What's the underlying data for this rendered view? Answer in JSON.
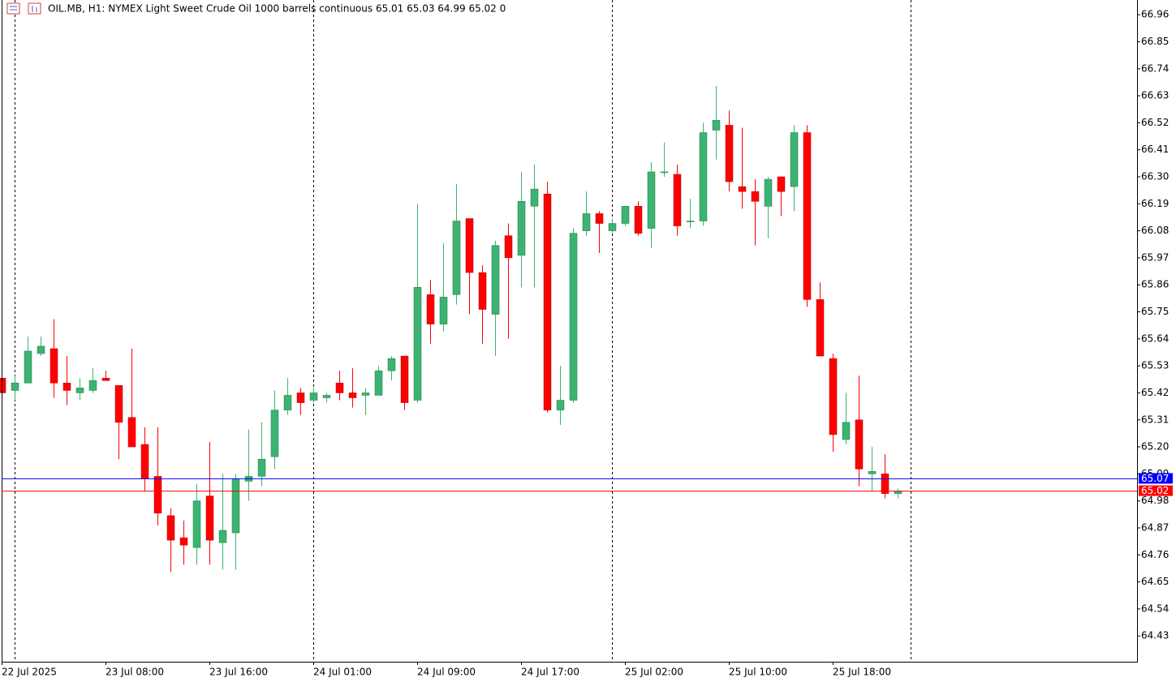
{
  "chart_data": {
    "type": "candlestick",
    "title": "OIL.MB, H1:  NYMEX Light Sweet Crude Oil 1000 barrels continuous  65.01 65.03 64.99 65.02  0",
    "x": [
      "22 Jul 2025",
      null,
      null,
      null,
      null,
      null,
      null,
      null,
      "23 Jul 08:00",
      null,
      null,
      null,
      null,
      null,
      null,
      null,
      "23 Jul 16:00",
      null,
      null,
      null,
      null,
      null,
      null,
      null,
      "24 Jul 01:00",
      null,
      null,
      null,
      null,
      null,
      null,
      null,
      "24 Jul 09:00",
      null,
      null,
      null,
      null,
      null,
      null,
      null,
      "24 Jul 17:00",
      null,
      null,
      null,
      null,
      null,
      null,
      null,
      "25 Jul 02:00",
      null,
      null,
      null,
      null,
      null,
      null,
      null,
      "25 Jul 10:00",
      null,
      null,
      null,
      null,
      null,
      null,
      null,
      "25 Jul 18:00",
      null,
      null,
      null,
      null,
      null
    ],
    "open": [
      65.48,
      65.43,
      65.46,
      65.58,
      65.6,
      65.46,
      65.42,
      65.43,
      65.48,
      65.45,
      65.32,
      65.21,
      65.08,
      64.92,
      64.83,
      64.79,
      65.0,
      64.81,
      64.85,
      65.06,
      65.08,
      65.16,
      65.35,
      65.42,
      65.39,
      65.4,
      65.46,
      65.42,
      65.41,
      65.41,
      65.51,
      65.57,
      65.39,
      65.82,
      65.7,
      65.82,
      66.13,
      65.91,
      65.74,
      66.06,
      65.98,
      66.18,
      66.23,
      65.35,
      65.39,
      66.08,
      66.15,
      66.08,
      66.11,
      66.18,
      66.09,
      66.32,
      66.31,
      66.12,
      66.12,
      66.49,
      66.51,
      66.26,
      66.24,
      66.18,
      66.3,
      66.26,
      66.48,
      65.8,
      65.56,
      65.23,
      65.31,
      65.09,
      65.09,
      65.01
    ],
    "high": [
      65.5,
      65.49,
      65.65,
      65.65,
      65.72,
      65.57,
      65.48,
      65.52,
      65.51,
      65.45,
      65.6,
      65.28,
      65.28,
      64.95,
      64.9,
      65.05,
      65.22,
      65.09,
      65.09,
      65.27,
      65.3,
      65.43,
      65.48,
      65.44,
      65.44,
      65.42,
      65.51,
      65.52,
      65.44,
      65.53,
      65.57,
      65.57,
      66.19,
      65.88,
      66.03,
      66.27,
      66.13,
      65.94,
      66.04,
      66.11,
      66.32,
      66.35,
      66.28,
      65.53,
      66.09,
      66.24,
      66.16,
      66.13,
      66.18,
      66.2,
      66.36,
      66.44,
      66.35,
      66.21,
      66.52,
      66.67,
      66.57,
      66.5,
      66.29,
      66.3,
      66.3,
      66.51,
      66.51,
      65.87,
      65.58,
      65.42,
      65.49,
      65.2,
      65.17,
      65.03
    ],
    "low": [
      65.41,
      65.39,
      65.46,
      65.57,
      65.4,
      65.37,
      65.39,
      65.42,
      65.47,
      65.15,
      65.2,
      65.02,
      64.88,
      64.69,
      64.72,
      64.72,
      64.72,
      64.7,
      64.7,
      64.98,
      65.04,
      65.11,
      65.33,
      65.33,
      65.38,
      65.38,
      65.39,
      65.36,
      65.33,
      65.41,
      65.47,
      65.35,
      65.38,
      65.62,
      65.67,
      65.78,
      65.74,
      65.62,
      65.57,
      65.64,
      65.85,
      65.85,
      65.34,
      65.29,
      65.38,
      66.06,
      65.99,
      66.07,
      66.1,
      66.06,
      66.01,
      66.3,
      66.06,
      66.09,
      66.1,
      66.37,
      66.24,
      66.17,
      66.02,
      66.05,
      66.14,
      66.16,
      65.77,
      65.57,
      65.18,
      65.21,
      65.04,
      65.02,
      64.99,
      64.99
    ],
    "close": [
      65.42,
      65.46,
      65.59,
      65.61,
      65.46,
      65.43,
      65.44,
      65.47,
      65.47,
      65.3,
      65.2,
      65.07,
      64.93,
      64.82,
      64.8,
      64.98,
      64.82,
      64.86,
      65.07,
      65.08,
      65.15,
      65.35,
      65.41,
      65.38,
      65.42,
      65.41,
      65.42,
      65.4,
      65.42,
      65.51,
      65.56,
      65.38,
      65.85,
      65.7,
      65.81,
      66.12,
      65.91,
      65.76,
      66.02,
      65.97,
      66.2,
      66.25,
      65.35,
      65.39,
      66.07,
      66.15,
      66.11,
      66.11,
      66.18,
      66.07,
      66.32,
      66.32,
      66.1,
      66.12,
      66.48,
      66.53,
      66.28,
      66.24,
      66.2,
      66.29,
      66.24,
      66.48,
      65.8,
      65.57,
      65.25,
      65.3,
      65.11,
      65.1,
      65.01,
      65.02
    ],
    "up_color": "#3cb371",
    "down_color": "#ff0000",
    "ylim": [
      64.325,
      67.02
    ],
    "yticks": [
      66.96,
      66.85,
      66.74,
      66.63,
      66.52,
      66.41,
      {
        "value": 66.3,
        "label": "66.30"
      },
      66.19,
      66.08,
      65.97,
      65.86,
      65.75,
      65.64,
      65.53,
      65.42,
      65.31,
      {
        "value": 65.2,
        "label": "65.20"
      },
      65.09,
      64.98,
      64.87,
      64.76,
      64.65,
      64.54,
      64.43
    ],
    "price_lines": [
      {
        "value": 65.07,
        "color": "#0000ff"
      },
      {
        "value": 65.02,
        "color": "#ff0000"
      }
    ]
  }
}
